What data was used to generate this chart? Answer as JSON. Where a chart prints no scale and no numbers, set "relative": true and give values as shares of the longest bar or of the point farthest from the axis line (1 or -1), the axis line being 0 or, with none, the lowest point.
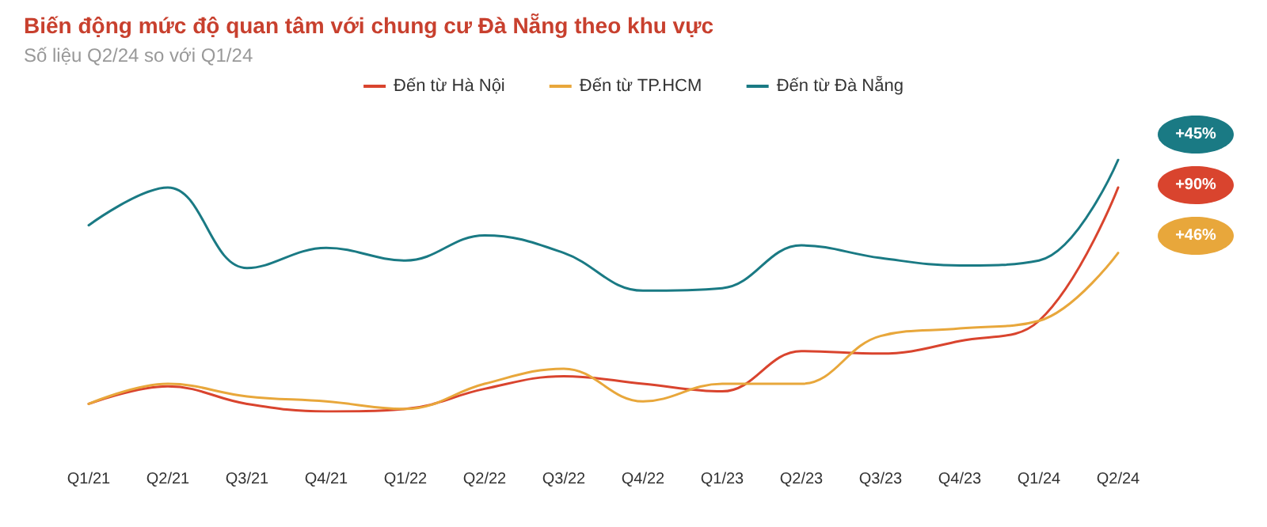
{
  "chart_data": {
    "type": "line",
    "title": "Biến động mức độ quan tâm với chung cư Đà Nẵng theo khu vực",
    "subtitle": "Số liệu Q2/24 so với Q1/24",
    "relative": true,
    "legend": "top",
    "categories": [
      "Q1/21",
      "Q2/21",
      "Q3/21",
      "Q4/21",
      "Q1/22",
      "Q2/22",
      "Q3/22",
      "Q4/22",
      "Q1/23",
      "Q2/23",
      "Q3/23",
      "Q4/23",
      "Q1/24",
      "Q2/24"
    ],
    "series": [
      {
        "name": "Đến từ Hà Nội",
        "color": "#d9442e",
        "values": [
          0.03,
          0.1,
          0.03,
          0,
          0.01,
          0.09,
          0.14,
          0.11,
          0.08,
          0.24,
          0.23,
          0.28,
          0.36,
          0.89
        ]
      },
      {
        "name": "Đến từ TP.HCM",
        "color": "#e8a73b",
        "values": [
          0.03,
          0.11,
          0.06,
          0.04,
          0.01,
          0.11,
          0.17,
          0.04,
          0.11,
          0.11,
          0.3,
          0.33,
          0.36,
          0.63
        ]
      },
      {
        "name": "Đến từ Đà Nẵng",
        "color": "#1a7a84",
        "values": [
          0.74,
          0.89,
          0.57,
          0.65,
          0.6,
          0.7,
          0.63,
          0.48,
          0.49,
          0.66,
          0.61,
          0.58,
          0.6,
          1
        ]
      }
    ],
    "annotations": [
      "+45%",
      "+90%",
      "+46%"
    ]
  }
}
